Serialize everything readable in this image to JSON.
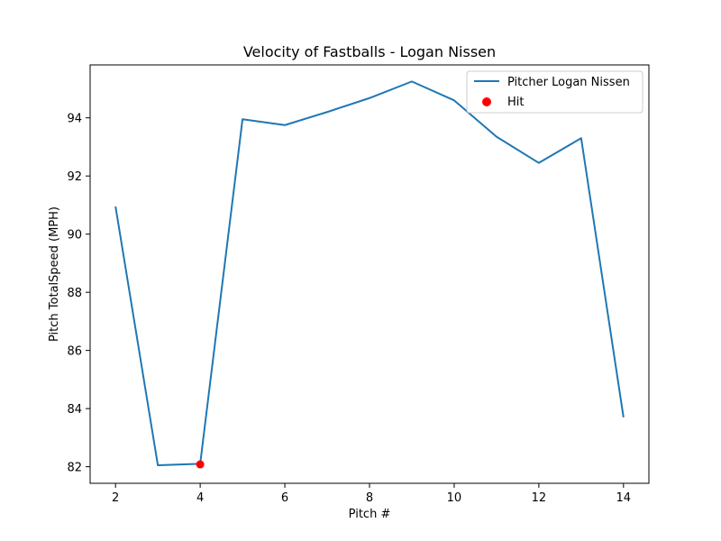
{
  "chart_data": {
    "type": "line",
    "title": "Velocity of Fastballs - Logan Nissen",
    "xlabel": "Pitch #",
    "ylabel": "Pitch TotalSpeed (MPH)",
    "xlim": [
      1.4,
      14.6
    ],
    "ylim": [
      81.43,
      95.82
    ],
    "xticks": [
      2,
      4,
      6,
      8,
      10,
      12,
      14
    ],
    "yticks": [
      82,
      84,
      86,
      88,
      90,
      92,
      94
    ],
    "grid": false,
    "legend_position": "top-right",
    "series": [
      {
        "name": "Pitcher Logan Nissen",
        "kind": "line",
        "color": "#1f77b4",
        "x": [
          2,
          3,
          4,
          5,
          6,
          7,
          8,
          9,
          10,
          11,
          12,
          13,
          14
        ],
        "y": [
          90.95,
          82.05,
          82.1,
          93.95,
          93.75,
          94.2,
          94.68,
          95.25,
          94.6,
          93.35,
          92.45,
          93.3,
          83.7
        ]
      },
      {
        "name": "Hit",
        "kind": "scatter",
        "color": "#ff0000",
        "x": [
          4
        ],
        "y": [
          82.08
        ]
      }
    ]
  }
}
